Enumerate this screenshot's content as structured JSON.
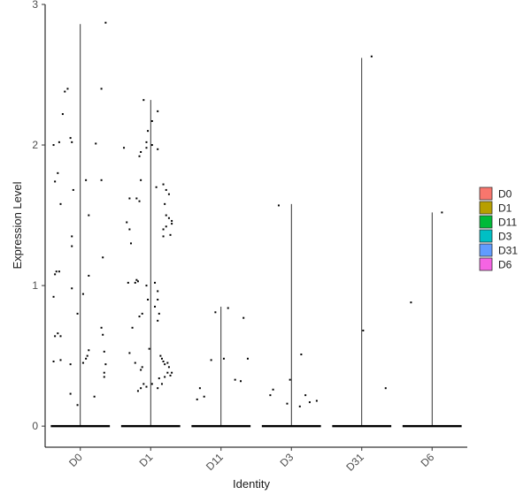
{
  "chart_data": {
    "type": "scatter",
    "xlabel": "Identity",
    "ylabel": "Expression Level",
    "ylim": [
      -0.15,
      3
    ],
    "yticks": [
      0,
      1,
      2,
      3
    ],
    "categories": [
      "D0",
      "D1",
      "D11",
      "D3",
      "D31",
      "D6"
    ],
    "violin_max": [
      2.86,
      2.32,
      0.85,
      1.58,
      2.62,
      1.52
    ],
    "grid": false,
    "legend": {
      "placement": "right",
      "entries": [
        "D0",
        "D1",
        "D11",
        "D3",
        "D31",
        "D6"
      ]
    },
    "colors": {
      "D0": "#F8766D",
      "D1": "#B79F00",
      "D11": "#00BA38",
      "D3": "#00BFC4",
      "D31": "#619CFF",
      "D6": "#F564E3"
    },
    "points": {
      "D0": [
        [
          -0.38,
          2.0
        ],
        [
          -0.3,
          2.02
        ],
        [
          -0.25,
          2.22
        ],
        [
          -0.22,
          2.38
        ],
        [
          -0.18,
          2.4
        ],
        [
          -0.14,
          2.05
        ],
        [
          -0.12,
          2.02
        ],
        [
          -0.32,
          1.8
        ],
        [
          -0.36,
          1.74
        ],
        [
          -0.1,
          1.68
        ],
        [
          0.08,
          1.75
        ],
        [
          -0.28,
          1.58
        ],
        [
          -0.12,
          1.35
        ],
        [
          -0.12,
          1.28
        ],
        [
          -0.34,
          1.1
        ],
        [
          -0.36,
          1.08
        ],
        [
          -0.3,
          1.1
        ],
        [
          0.12,
          1.07
        ],
        [
          -0.12,
          0.98
        ],
        [
          -0.38,
          0.92
        ],
        [
          0.04,
          0.94
        ],
        [
          -0.36,
          0.64
        ],
        [
          -0.32,
          0.66
        ],
        [
          -0.28,
          0.64
        ],
        [
          -0.04,
          0.8
        ],
        [
          -0.38,
          0.46
        ],
        [
          -0.28,
          0.47
        ],
        [
          -0.14,
          0.44
        ],
        [
          0.04,
          0.45
        ],
        [
          0.08,
          0.48
        ],
        [
          0.1,
          0.5
        ],
        [
          0.12,
          0.54
        ],
        [
          0.3,
          0.7
        ],
        [
          0.32,
          0.65
        ],
        [
          0.34,
          0.53
        ],
        [
          0.36,
          0.44
        ],
        [
          0.34,
          0.38
        ],
        [
          0.34,
          0.35
        ],
        [
          -0.14,
          0.23
        ],
        [
          0.2,
          0.21
        ],
        [
          -0.04,
          0.15
        ],
        [
          0.12,
          1.5
        ],
        [
          0.3,
          1.75
        ],
        [
          0.32,
          1.2
        ],
        [
          0.3,
          2.4
        ],
        [
          0.22,
          2.01
        ],
        [
          0.36,
          2.87
        ]
      ],
      "D1": [
        [
          -0.38,
          1.98
        ],
        [
          -0.32,
          1.02
        ],
        [
          -0.34,
          1.45
        ],
        [
          -0.3,
          1.4
        ],
        [
          -0.28,
          1.3
        ],
        [
          -0.3,
          1.62
        ],
        [
          -0.26,
          0.7
        ],
        [
          -0.3,
          0.52
        ],
        [
          -0.22,
          0.45
        ],
        [
          -0.18,
          0.25
        ],
        [
          -0.14,
          0.27
        ],
        [
          -0.22,
          1.02
        ],
        [
          -0.2,
          1.04
        ],
        [
          -0.18,
          1.03
        ],
        [
          -0.16,
          0.78
        ],
        [
          -0.12,
          0.8
        ],
        [
          -0.12,
          0.42
        ],
        [
          -0.14,
          0.4
        ],
        [
          -0.1,
          0.3
        ],
        [
          -0.06,
          0.28
        ],
        [
          -0.02,
          0.55
        ],
        [
          -0.06,
          1.0
        ],
        [
          -0.04,
          0.9
        ],
        [
          -0.2,
          1.62
        ],
        [
          -0.16,
          1.6
        ],
        [
          -0.14,
          1.75
        ],
        [
          -0.16,
          1.92
        ],
        [
          -0.14,
          1.95
        ],
        [
          -0.06,
          1.98
        ],
        [
          -0.1,
          2.32
        ],
        [
          -0.04,
          2.1
        ],
        [
          -0.06,
          2.02
        ],
        [
          0.02,
          2.0
        ],
        [
          0.02,
          2.17
        ],
        [
          0.1,
          2.24
        ],
        [
          0.1,
          1.97
        ],
        [
          0.08,
          1.7
        ],
        [
          0.18,
          1.72
        ],
        [
          0.22,
          1.68
        ],
        [
          0.26,
          1.65
        ],
        [
          0.2,
          1.58
        ],
        [
          0.22,
          1.5
        ],
        [
          0.26,
          1.48
        ],
        [
          0.3,
          1.46
        ],
        [
          0.3,
          1.44
        ],
        [
          0.18,
          1.4
        ],
        [
          0.22,
          1.42
        ],
        [
          0.28,
          1.36
        ],
        [
          0.18,
          1.35
        ],
        [
          0.06,
          1.02
        ],
        [
          0.1,
          0.96
        ],
        [
          0.1,
          0.9
        ],
        [
          0.06,
          0.85
        ],
        [
          0.12,
          0.8
        ],
        [
          0.1,
          0.75
        ],
        [
          0.14,
          0.5
        ],
        [
          0.16,
          0.48
        ],
        [
          0.18,
          0.46
        ],
        [
          0.2,
          0.44
        ],
        [
          0.24,
          0.45
        ],
        [
          0.26,
          0.42
        ],
        [
          0.24,
          0.38
        ],
        [
          0.28,
          0.36
        ],
        [
          0.3,
          0.38
        ],
        [
          0.2,
          0.35
        ],
        [
          0.16,
          0.3
        ],
        [
          0.12,
          0.34
        ],
        [
          0.1,
          0.27
        ],
        [
          0.02,
          0.3
        ]
      ],
      "D11": [
        [
          -0.34,
          0.19
        ],
        [
          -0.3,
          0.27
        ],
        [
          -0.24,
          0.21
        ],
        [
          -0.14,
          0.47
        ],
        [
          -0.08,
          0.81
        ],
        [
          0.04,
          0.48
        ],
        [
          0.1,
          0.84
        ],
        [
          0.2,
          0.33
        ],
        [
          0.28,
          0.32
        ],
        [
          0.32,
          0.77
        ],
        [
          0.38,
          0.48
        ]
      ],
      "D3": [
        [
          -0.3,
          0.22
        ],
        [
          -0.26,
          0.26
        ],
        [
          -0.18,
          1.57
        ],
        [
          -0.06,
          0.16
        ],
        [
          -0.02,
          0.33
        ],
        [
          0.12,
          0.14
        ],
        [
          0.14,
          0.51
        ],
        [
          0.2,
          0.22
        ],
        [
          0.26,
          0.17
        ],
        [
          0.36,
          0.18
        ]
      ],
      "D31": [
        [
          0.02,
          0.68
        ],
        [
          0.14,
          2.63
        ],
        [
          0.34,
          0.27
        ]
      ],
      "D6": [
        [
          -0.3,
          0.88
        ],
        [
          0.14,
          1.52
        ]
      ]
    }
  }
}
